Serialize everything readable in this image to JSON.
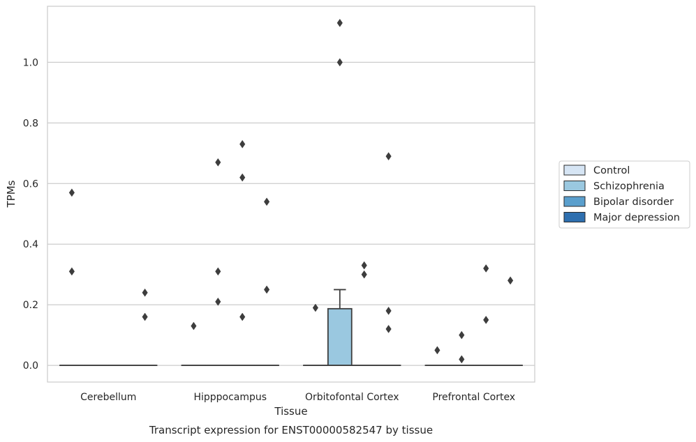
{
  "chart_data": {
    "type": "box",
    "title": "Transcript expression for ENST00000582547 by tissue",
    "xlabel": "Tissue",
    "ylabel": "TPMs",
    "ylim": [
      -0.055,
      1.185
    ],
    "yticks": [
      0.0,
      0.2,
      0.4,
      0.6,
      0.8,
      1.0
    ],
    "ytick_labels": [
      "0.0",
      "0.2",
      "0.4",
      "0.6",
      "0.8",
      "1.0"
    ],
    "grid": "horizontal",
    "legend_position": "right",
    "categories": [
      "Cerebellum",
      "Hipppocampus",
      "Orbitofontal Cortex",
      "Prefrontal Cortex"
    ],
    "series": [
      {
        "name": "Control",
        "color": "#d6e5f4",
        "boxes": [
          {
            "q1": 0,
            "median": 0,
            "q3": 0,
            "whisker_low": 0,
            "whisker_high": 0,
            "outliers": [
              0.57,
              0.31
            ]
          },
          {
            "q1": 0,
            "median": 0,
            "q3": 0,
            "whisker_low": 0,
            "whisker_high": 0,
            "outliers": [
              0.13
            ]
          },
          {
            "q1": 0,
            "median": 0,
            "q3": 0,
            "whisker_low": 0,
            "whisker_high": 0,
            "outliers": [
              0.19
            ]
          },
          {
            "q1": 0,
            "median": 0,
            "q3": 0,
            "whisker_low": 0,
            "whisker_high": 0,
            "outliers": [
              0.05
            ]
          }
        ]
      },
      {
        "name": "Schizophrenia",
        "color": "#9ac8e0",
        "boxes": [
          {
            "q1": 0,
            "median": 0,
            "q3": 0,
            "whisker_low": 0,
            "whisker_high": 0,
            "outliers": []
          },
          {
            "q1": 0,
            "median": 0,
            "q3": 0,
            "whisker_low": 0,
            "whisker_high": 0,
            "outliers": [
              0.67,
              0.31,
              0.21
            ]
          },
          {
            "q1": 0,
            "median": 0,
            "q3": 0.187,
            "whisker_low": 0,
            "whisker_high": 0.25,
            "outliers": [
              1.13,
              1.0
            ]
          },
          {
            "q1": 0,
            "median": 0,
            "q3": 0,
            "whisker_low": 0,
            "whisker_high": 0,
            "outliers": [
              0.1,
              0.02
            ]
          }
        ]
      },
      {
        "name": "Bipolar disorder",
        "color": "#5a9fcd",
        "boxes": [
          {
            "q1": 0,
            "median": 0,
            "q3": 0,
            "whisker_low": 0,
            "whisker_high": 0,
            "outliers": []
          },
          {
            "q1": 0,
            "median": 0,
            "q3": 0,
            "whisker_low": 0,
            "whisker_high": 0,
            "outliers": [
              0.73,
              0.62,
              0.16
            ]
          },
          {
            "q1": 0,
            "median": 0,
            "q3": 0,
            "whisker_low": 0,
            "whisker_high": 0,
            "outliers": [
              0.33,
              0.3
            ]
          },
          {
            "q1": 0,
            "median": 0,
            "q3": 0,
            "whisker_low": 0,
            "whisker_high": 0,
            "outliers": [
              0.32,
              0.15
            ]
          }
        ]
      },
      {
        "name": "Major depression",
        "color": "#2e6faf",
        "boxes": [
          {
            "q1": 0,
            "median": 0,
            "q3": 0,
            "whisker_low": 0,
            "whisker_high": 0,
            "outliers": [
              0.24,
              0.16
            ]
          },
          {
            "q1": 0,
            "median": 0,
            "q3": 0,
            "whisker_low": 0,
            "whisker_high": 0,
            "outliers": [
              0.54,
              0.25
            ]
          },
          {
            "q1": 0,
            "median": 0,
            "q3": 0,
            "whisker_low": 0,
            "whisker_high": 0,
            "outliers": [
              0.69,
              0.18,
              0.12
            ]
          },
          {
            "q1": 0,
            "median": 0,
            "q3": 0,
            "whisker_low": 0,
            "whisker_high": 0,
            "outliers": [
              0.28
            ]
          }
        ]
      }
    ]
  }
}
